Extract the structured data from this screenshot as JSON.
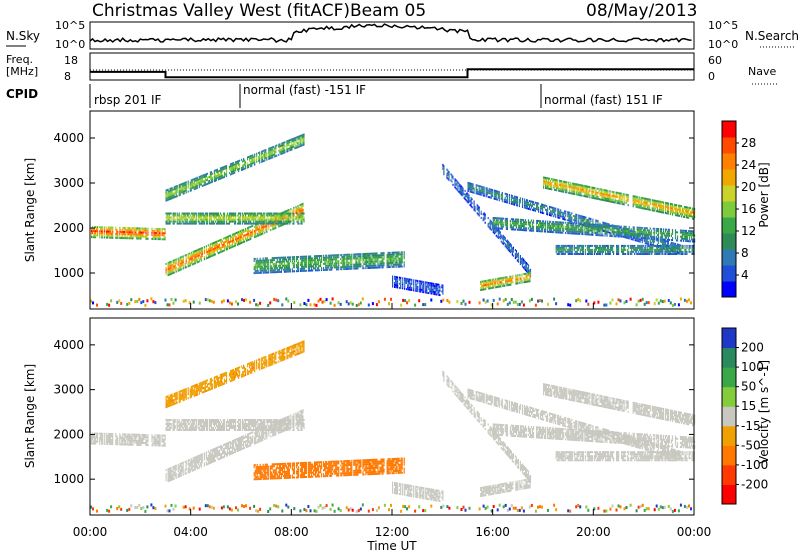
{
  "header": {
    "station": "Christmas Valley West (fitACF)",
    "beam": "Beam 05",
    "date": "08/May/2013"
  },
  "noise_panel": {
    "left_label": "N.Sky",
    "right_label": "N.Search",
    "left_ticks": [
      "10^5",
      "10^0"
    ],
    "right_ticks": [
      "10^5",
      "10^0"
    ]
  },
  "freq_panel": {
    "left_label_1": "Freq.",
    "left_label_2": "[MHz]",
    "left_ticks": [
      "18",
      "8"
    ],
    "right_label": "Nave",
    "right_ticks": [
      "60",
      "0"
    ]
  },
  "cpid": {
    "label": "CPID",
    "segments": [
      {
        "text": "rbsp 201 IF"
      },
      {
        "text": "normal (fast) -151 IF"
      },
      {
        "text": "normal (fast) 151 IF"
      }
    ]
  },
  "x_axis": {
    "label": "Time UT",
    "ticks": [
      "00:00",
      "04:00",
      "08:00",
      "12:00",
      "16:00",
      "20:00",
      "00:00"
    ]
  },
  "power_panel": {
    "ylabel": "Slant Range [km]",
    "yticks": [
      "4000",
      "3000",
      "2000",
      "1000"
    ],
    "colorbar_label": "Power [dB]",
    "colorbar_ticks": [
      "28",
      "24",
      "20",
      "16",
      "12",
      "8",
      "4"
    ],
    "colors": [
      "#0000ff",
      "#1f4fd8",
      "#2f7ab5",
      "#2e8b57",
      "#3aa848",
      "#7ecb3c",
      "#c9d32a",
      "#f0a800",
      "#ff8000",
      "#ff4a00",
      "#ff0000"
    ]
  },
  "velocity_panel": {
    "ylabel": "Slant Range [km]",
    "yticks": [
      "4000",
      "3000",
      "2000",
      "1000"
    ],
    "colorbar_label": "Velocity [m s^-1]",
    "colorbar_ticks": [
      "200",
      "100",
      "50",
      "15",
      "-15",
      "-50",
      "-100",
      "-200"
    ],
    "colors": [
      "#2038c8",
      "#2a8a5e",
      "#3aa848",
      "#84cc3c",
      "#c8c8c0",
      "#f0a000",
      "#ff7800",
      "#ff3a00",
      "#ff0000"
    ]
  },
  "chart_data": {
    "type": "heatmap",
    "title": "Christmas Valley West (fitACF) Beam 05 08/May/2013",
    "xlabel": "Time UT",
    "ylabel": "Slant Range [km]",
    "xlim": [
      0,
      24
    ],
    "ylim": [
      200,
      4600
    ],
    "features": [
      {
        "t_start": 0.0,
        "t_end": 3.0,
        "range_start": 1900,
        "range_end": 1850,
        "width": 250,
        "power": 27,
        "velocity": 0
      },
      {
        "t_start": 3.0,
        "t_end": 8.5,
        "range_start": 1050,
        "range_end": 2400,
        "width": 280,
        "power": 25,
        "velocity": 0
      },
      {
        "t_start": 3.0,
        "t_end": 8.5,
        "range_start": 2200,
        "range_end": 2200,
        "width": 250,
        "power": 18,
        "velocity": 0
      },
      {
        "t_start": 3.0,
        "t_end": 8.5,
        "range_start": 2700,
        "range_end": 3950,
        "width": 230,
        "power": 17,
        "velocity": -30
      },
      {
        "t_start": 6.5,
        "t_end": 12.5,
        "range_start": 1150,
        "range_end": 1300,
        "width": 350,
        "power": 14,
        "velocity": -60
      },
      {
        "t_start": 14.0,
        "t_end": 17.5,
        "range_start": 3300,
        "range_end": 1000,
        "width": 200,
        "power": 8,
        "velocity": 0
      },
      {
        "t_start": 15.5,
        "t_end": 17.5,
        "range_start": 700,
        "range_end": 900,
        "width": 200,
        "power": 24,
        "velocity": 0
      },
      {
        "t_start": 15.0,
        "t_end": 23.5,
        "range_start": 2900,
        "range_end": 1500,
        "width": 200,
        "power": 10,
        "velocity": 0
      },
      {
        "t_start": 18.0,
        "t_end": 24.0,
        "range_start": 3000,
        "range_end": 2300,
        "width": 250,
        "power": 22,
        "velocity": 0
      },
      {
        "t_start": 16.0,
        "t_end": 24.0,
        "range_start": 2100,
        "range_end": 1800,
        "width": 250,
        "power": 13,
        "velocity": 0
      },
      {
        "t_start": 18.5,
        "t_end": 24.0,
        "range_start": 1500,
        "range_end": 1500,
        "width": 200,
        "power": 12,
        "velocity": 0
      },
      {
        "t_start": 12.0,
        "t_end": 14.0,
        "range_start": 800,
        "range_end": 600,
        "width": 250,
        "power": 6,
        "velocity": 0
      }
    ],
    "freq_mhz": [
      {
        "t_start": 0.0,
        "t_end": 3.0,
        "value": 11
      },
      {
        "t_start": 3.0,
        "t_end": 15.0,
        "value": 9
      },
      {
        "t_start": 15.0,
        "t_end": 24.0,
        "value": 12
      }
    ]
  }
}
